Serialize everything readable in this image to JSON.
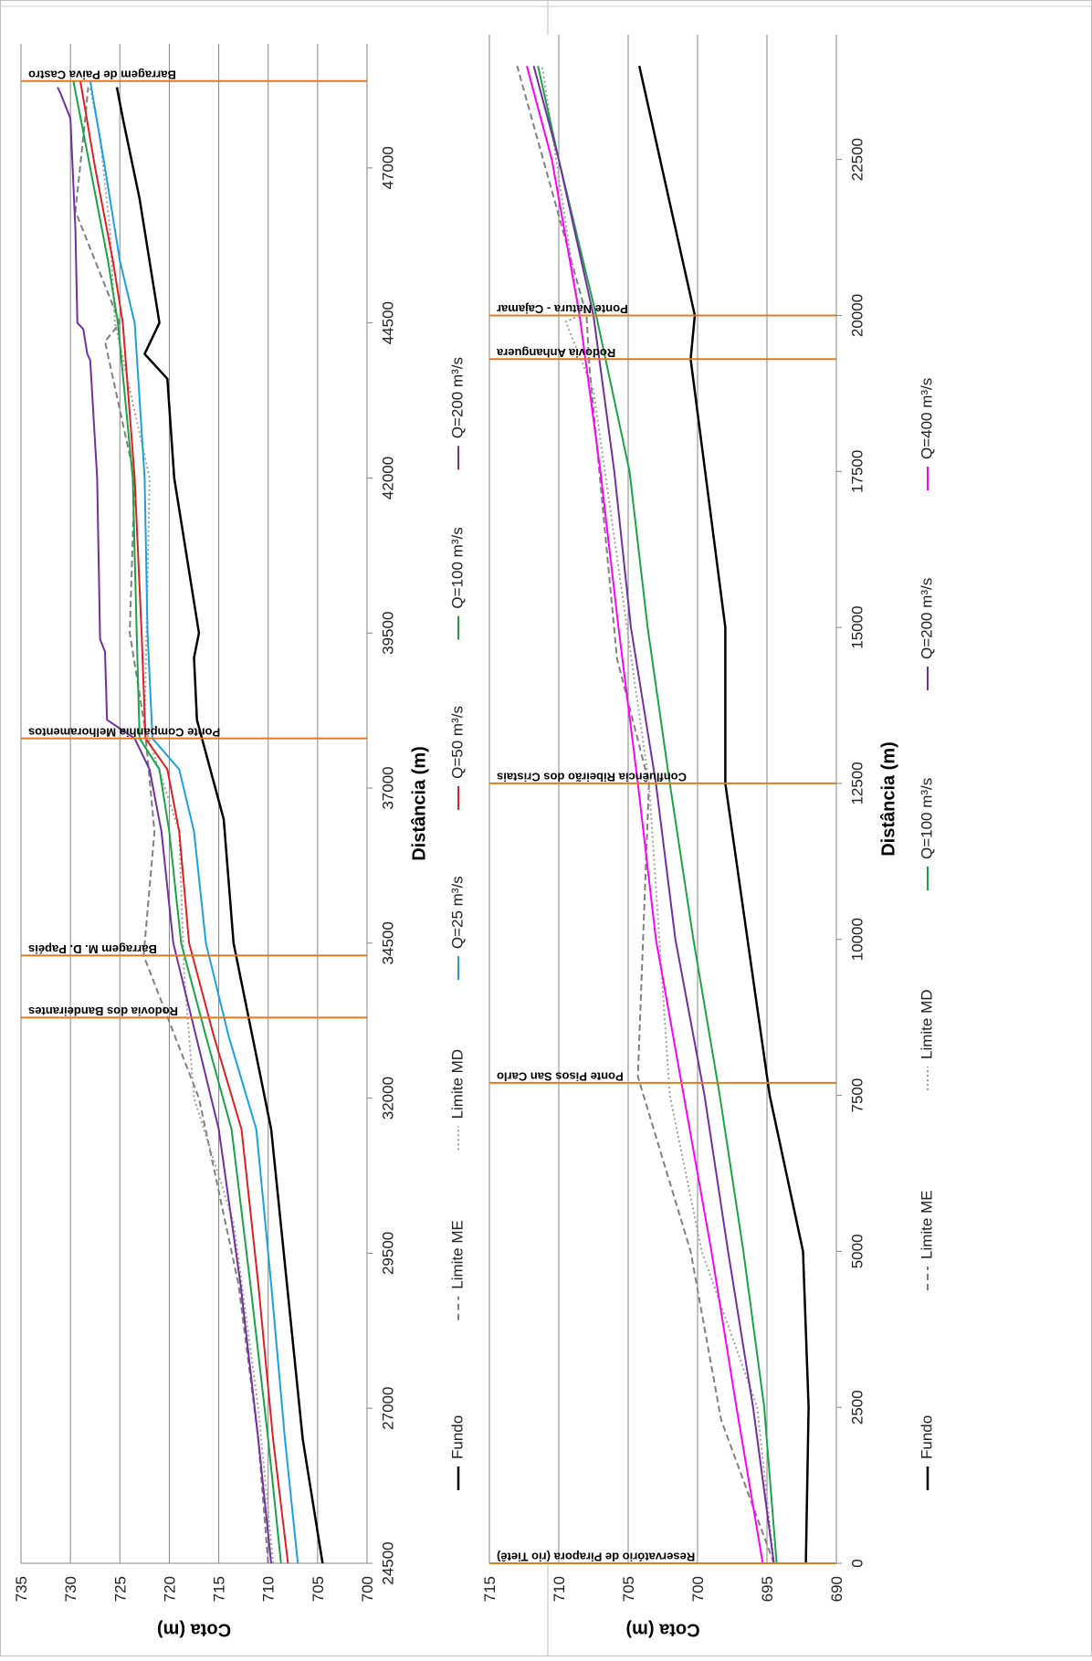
{
  "chart_data": [
    {
      "type": "line",
      "xlabel": "Distância (m)",
      "ylabel": "Cota (m)",
      "xlim": [
        24500,
        49000
      ],
      "ylim": [
        700,
        735
      ],
      "xticks": [
        "24500",
        "27000",
        "29500",
        "32000",
        "34500",
        "37000",
        "39500",
        "42000",
        "44500",
        "47000"
      ],
      "yticks": [
        "700",
        "705",
        "710",
        "715",
        "720",
        "725",
        "730",
        "735"
      ],
      "grid": true,
      "legend": "right",
      "structures": [
        {
          "x": 33300,
          "label": "Rodovia dos Bandeirantes"
        },
        {
          "x": 34300,
          "label": "Barragem M. D. Papéis"
        },
        {
          "x": 37800,
          "label": "Ponte Companhia Melhoramentos"
        },
        {
          "x": 48400,
          "label": "Barragem de Paiva Castro"
        }
      ],
      "series": [
        {
          "name": "Fundo",
          "color": "#000000",
          "dash": "",
          "width": 2.5,
          "x": [
            24500,
            26500,
            31500,
            34500,
            36500,
            38100,
            39100,
            39500,
            42000,
            43600,
            44000,
            44500,
            46500,
            47800,
            48300
          ],
          "y": [
            704.5,
            706.5,
            709.7,
            713.5,
            714.5,
            717.2,
            717.5,
            717,
            719.5,
            720.2,
            722.5,
            721,
            723,
            724.7,
            725.3
          ]
        },
        {
          "name": "Limite ME",
          "color": "#808080",
          "dash": "7,4",
          "width": 2,
          "x": [
            24500,
            26500,
            29000,
            32000,
            34300,
            36300,
            38000,
            39500,
            42000,
            44200,
            44500,
            46300,
            47800,
            48300
          ],
          "y": [
            710,
            711,
            713,
            717,
            722.6,
            721.5,
            722.5,
            724,
            723.5,
            726.5,
            725,
            729.5,
            728.5,
            728.2
          ]
        },
        {
          "name": "Limite MD",
          "color": "#a0a0a0",
          "dash": "2,3",
          "width": 2,
          "x": [
            24500,
            27000,
            30000,
            32000,
            34000,
            36300,
            38000,
            42000,
            44500,
            46000,
            47500,
            48300
          ],
          "y": [
            709.5,
            711,
            713.5,
            717.5,
            718.5,
            719,
            722.5,
            722,
            725.5,
            726,
            727,
            728
          ]
        },
        {
          "name": "Q=25 m³/s",
          "color": "#1ba1e2",
          "dash": "",
          "width": 2,
          "x": [
            24500,
            26500,
            29000,
            31500,
            33000,
            34500,
            36300,
            37300,
            37800,
            39500,
            42000,
            44500,
            45500,
            47000,
            48400
          ],
          "y": [
            707,
            708.3,
            709.7,
            711.2,
            714,
            716.3,
            717.5,
            719,
            721.7,
            722.2,
            722.5,
            723.5,
            725,
            726.5,
            728
          ]
        },
        {
          "name": "Q=50 m³/s",
          "color": "#e02020",
          "dash": "",
          "width": 2,
          "x": [
            24500,
            26500,
            29000,
            31500,
            33000,
            34500,
            36300,
            37300,
            37800,
            39500,
            42000,
            44500,
            45500,
            47000,
            48400
          ],
          "y": [
            708,
            709.5,
            711,
            712.7,
            715.5,
            718,
            719,
            720.2,
            722.4,
            722.8,
            723.5,
            724.7,
            725.7,
            727.5,
            729
          ]
        },
        {
          "name": "Q=100 m³/s",
          "color": "#1aa347",
          "dash": "",
          "width": 2,
          "x": [
            24500,
            26500,
            29000,
            31500,
            33000,
            34500,
            36300,
            37300,
            37800,
            39500,
            42000,
            44500,
            45500,
            47000,
            48400
          ],
          "y": [
            708.7,
            710,
            711.8,
            713.7,
            716.3,
            718.8,
            720,
            721,
            723,
            723.3,
            723.7,
            725.2,
            726.2,
            728,
            729.7
          ]
        },
        {
          "name": "Q=200 m³/s",
          "color": "#7030a0",
          "dash": "",
          "width": 2,
          "x": [
            24500,
            26500,
            29000,
            31500,
            33000,
            34500,
            36300,
            37300,
            37800,
            38100,
            39200,
            39400,
            42000,
            43900,
            44000,
            44400,
            44500,
            46000,
            47800,
            48200,
            48300
          ],
          "y": [
            709.7,
            711,
            712.8,
            715,
            717.3,
            719.6,
            720.8,
            722,
            723.5,
            726.3,
            726.5,
            727,
            727.3,
            728,
            728.3,
            728.7,
            729.3,
            729.5,
            730,
            731,
            731.3
          ]
        }
      ]
    },
    {
      "type": "line",
      "xlabel": "Distância (m)",
      "ylabel": "Cota (m)",
      "xlim": [
        0,
        24500
      ],
      "ylim": [
        690,
        715
      ],
      "xticks": [
        "0",
        "2500",
        "5000",
        "7500",
        "10000",
        "12500",
        "15000",
        "17500",
        "20000",
        "22500"
      ],
      "yticks": [
        "690",
        "695",
        "700",
        "705",
        "710",
        "715"
      ],
      "grid": true,
      "legend": "right",
      "structures": [
        {
          "x": 0,
          "label": "Reservatório de Pirapora (rio Tietê)"
        },
        {
          "x": 7700,
          "label": "Ponte Pisos San Carlo"
        },
        {
          "x": 12500,
          "label": "Confluência Ribeirão dos Cristais"
        },
        {
          "x": 19300,
          "label": "Rodovia Anhanguera"
        },
        {
          "x": 20000,
          "label": "Ponte Natura - Cajamar"
        }
      ],
      "series": [
        {
          "name": "Fundo",
          "color": "#000000",
          "dash": "",
          "width": 2.5,
          "x": [
            0,
            2500,
            5000,
            7500,
            12500,
            15000,
            19300,
            20000,
            24000
          ],
          "y": [
            692.2,
            692,
            692.4,
            694.8,
            698,
            698,
            700.5,
            700.2,
            704.2
          ]
        },
        {
          "name": "Limite ME",
          "color": "#808080",
          "dash": "7,4",
          "width": 2,
          "x": [
            0,
            2300,
            5000,
            7800,
            12500,
            14500,
            19200,
            20000,
            24000
          ],
          "y": [
            694.5,
            698.3,
            700.5,
            704.3,
            703.5,
            705.8,
            707.8,
            708,
            713
          ]
        },
        {
          "name": "Limite MD",
          "color": "#a0a0a0",
          "dash": "2,3",
          "width": 2,
          "x": [
            0,
            2500,
            5000,
            7500,
            12500,
            18800,
            19900,
            20000,
            24000
          ],
          "y": [
            694.5,
            695.7,
            699.7,
            702,
            703.5,
            707.5,
            709.5,
            708.5,
            711.2
          ]
        },
        {
          "name": "Q=100 m³/s",
          "color": "#1aa347",
          "dash": "",
          "width": 2,
          "x": [
            0,
            2500,
            5000,
            7500,
            10000,
            12500,
            15000,
            17500,
            20000,
            22500,
            24000
          ],
          "y": [
            694.3,
            695.2,
            696.7,
            698.4,
            700.3,
            702,
            703.6,
            704.9,
            707.3,
            710,
            711.5
          ]
        },
        {
          "name": "Q=200 m³/s",
          "color": "#7030a0",
          "dash": "",
          "width": 2,
          "x": [
            0,
            2500,
            5000,
            7500,
            10000,
            12500,
            15000,
            17500,
            20000,
            22500,
            24000
          ],
          "y": [
            694.5,
            696,
            697.8,
            699.5,
            701.6,
            703,
            704.8,
            706,
            707.5,
            710,
            711.8
          ]
        },
        {
          "name": "Q=400 m³/s",
          "color": "#ff00ff",
          "dash": "",
          "width": 2,
          "x": [
            0,
            2500,
            5000,
            7500,
            10000,
            12500,
            15000,
            17500,
            20000,
            22500,
            24000
          ],
          "y": [
            695.3,
            697.2,
            699,
            701,
            703,
            704.3,
            705.7,
            707,
            708.5,
            710.5,
            712.3
          ]
        }
      ]
    }
  ]
}
